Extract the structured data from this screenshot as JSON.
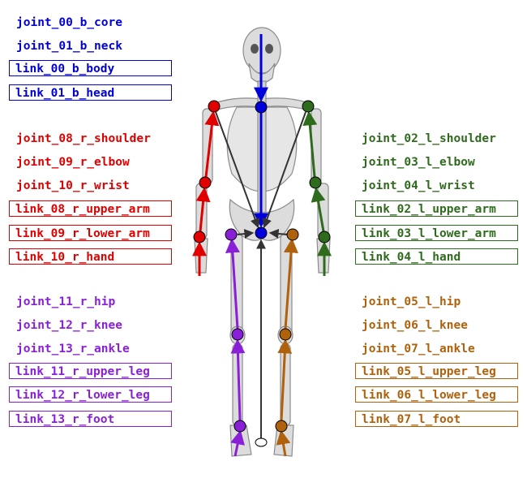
{
  "colors": {
    "body": "#0000dd",
    "right_arm": "#e00000",
    "left_arm": "#2f6b1c",
    "right_leg": "#8a1fd8",
    "left_leg": "#b0610c",
    "bone": "#d8d8d8",
    "bone_edge": "#8c8c8c",
    "center_line": "#333333"
  },
  "body": {
    "joints": [
      "joint_00_b_core",
      "joint_01_b_neck"
    ],
    "links": [
      "link_00_b_body",
      "link_01_b_head"
    ]
  },
  "right_arm": {
    "joints": [
      "joint_08_r_shoulder",
      "joint_09_r_elbow",
      "joint_10_r_wrist"
    ],
    "links": [
      "link_08_r_upper_arm",
      "link_09_r_lower_arm",
      "link_10_r_hand"
    ]
  },
  "left_arm": {
    "joints": [
      "joint_02_l_shoulder",
      "joint_03_l_elbow",
      "joint_04_l_wrist"
    ],
    "links": [
      "link_02_l_upper_arm",
      "link_03_l_lower_arm",
      "link_04_l_hand"
    ]
  },
  "right_leg": {
    "joints": [
      "joint_11_r_hip",
      "joint_12_r_knee",
      "joint_13_r_ankle"
    ],
    "links": [
      "link_11_r_upper_leg",
      "link_12_r_lower_leg",
      "link_13_r_foot"
    ]
  },
  "left_leg": {
    "joints": [
      "joint_05_l_hip",
      "joint_06_l_knee",
      "joint_07_l_ankle"
    ],
    "links": [
      "link_05_l_upper_leg",
      "link_06_l_lower_leg",
      "link_07_l_foot"
    ]
  }
}
